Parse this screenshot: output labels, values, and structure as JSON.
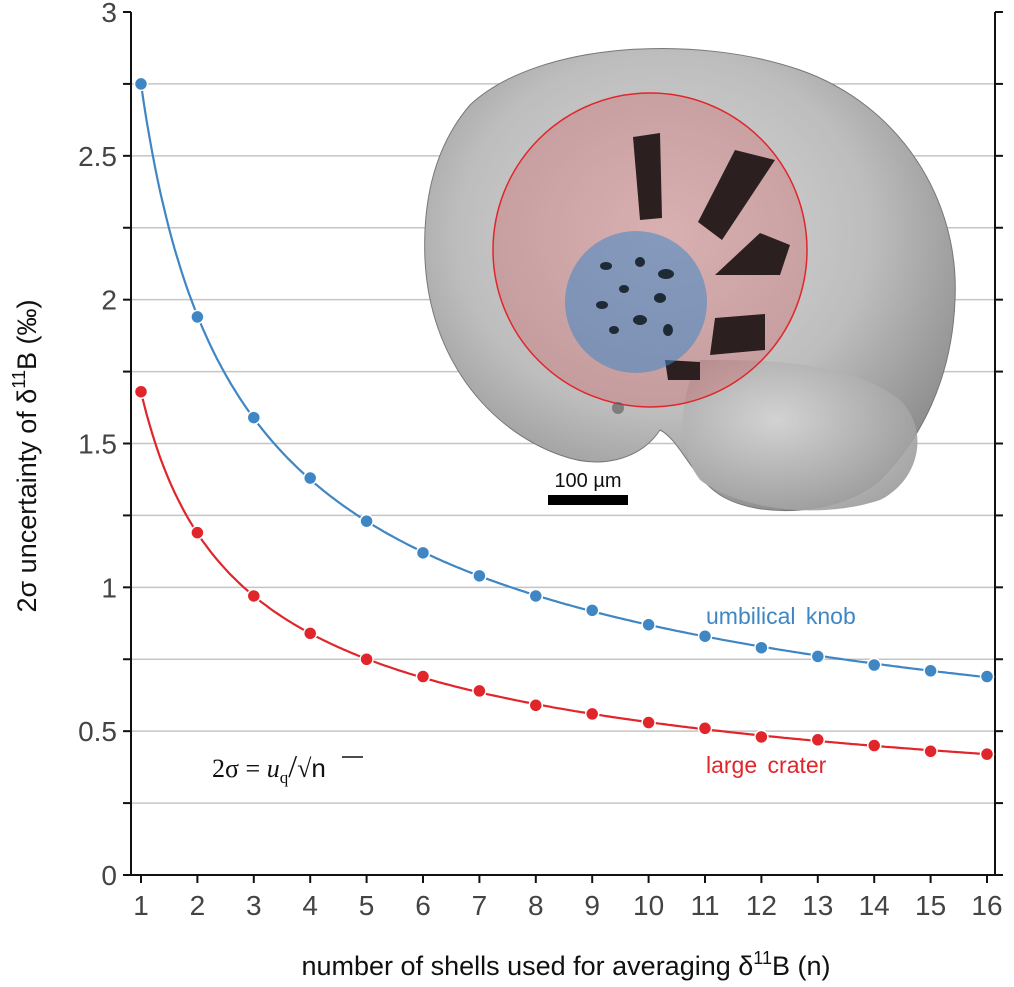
{
  "chart_data": {
    "type": "line",
    "xlabel_main": "number of shells used for averaging  δ",
    "xlabel_sup": "11",
    "xlabel_end": "B  (n)",
    "ylabel_main": "2σ  uncertainty  of  δ",
    "ylabel_sup": "11",
    "ylabel_end": "B  (‰)",
    "x": [
      1,
      2,
      3,
      4,
      5,
      6,
      7,
      8,
      9,
      10,
      11,
      12,
      13,
      14,
      15,
      16
    ],
    "xlim": [
      0.8,
      16.2
    ],
    "ylim": [
      0,
      3
    ],
    "x_ticks": [
      "1",
      "2",
      "3",
      "4",
      "5",
      "6",
      "7",
      "8",
      "9",
      "10",
      "11",
      "12",
      "13",
      "14",
      "15",
      "16"
    ],
    "y_ticks": [
      {
        "v": 0,
        "label": "0"
      },
      {
        "v": 0.5,
        "label": "0.5"
      },
      {
        "v": 1,
        "label": "1"
      },
      {
        "v": 1.5,
        "label": "1.5"
      },
      {
        "v": 2,
        "label": "2"
      },
      {
        "v": 2.5,
        "label": "2.5"
      },
      {
        "v": 3,
        "label": "3"
      }
    ],
    "gridlines": [
      0.25,
      0.5,
      0.75,
      1,
      1.25,
      1.5,
      1.75,
      2,
      2.25,
      2.5,
      2.75
    ],
    "grid": true,
    "series": [
      {
        "name": "umbilical  knob",
        "color": "#3f86c4",
        "u_q": 2.75,
        "values": [
          2.75,
          1.94,
          1.59,
          1.38,
          1.23,
          1.12,
          1.04,
          0.97,
          0.92,
          0.87,
          0.83,
          0.79,
          0.76,
          0.73,
          0.71,
          0.69
        ]
      },
      {
        "name": "large  crater",
        "color": "#e0262b",
        "u_q": 1.68,
        "values": [
          1.68,
          1.19,
          0.97,
          0.84,
          0.75,
          0.69,
          0.64,
          0.59,
          0.56,
          0.53,
          0.51,
          0.48,
          0.47,
          0.45,
          0.43,
          0.42
        ]
      }
    ],
    "formula": {
      "lhs": "2σ = ",
      "u": "u",
      "sub": "q",
      "slash": "/",
      "root": "√",
      "n": "n"
    },
    "inset": {
      "scale_bar_label": "100 µm",
      "large_crater_color": "#e0262b",
      "knob_color": "#3f86c4"
    }
  }
}
